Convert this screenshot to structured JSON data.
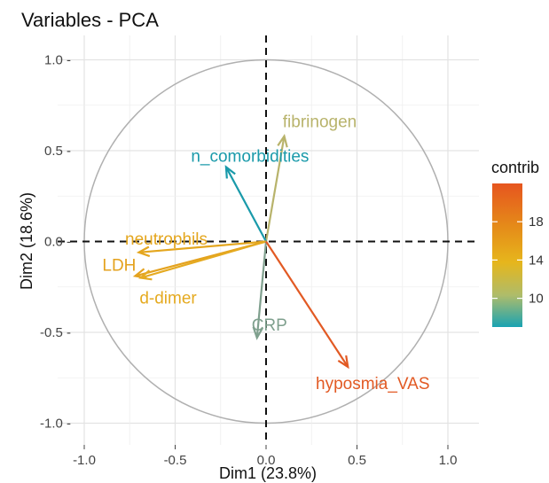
{
  "chart_data": {
    "type": "scatter",
    "subtype": "pca-variable-correlation-circle",
    "title": "Variables - PCA",
    "xlabel": "Dim1 (23.8%)",
    "ylabel": "Dim2 (18.6%)",
    "xlim": [
      -1.0,
      1.0
    ],
    "ylim": [
      -1.0,
      1.0
    ],
    "x_ticks": [
      "-1.0",
      "-0.5",
      "0.0",
      "0.5",
      "1.0"
    ],
    "y_ticks": [
      "1.0 -",
      "0.5 -",
      "0.0 -",
      "-0.5 -",
      "-1.0 -"
    ],
    "grid": true,
    "unit_circle": true,
    "variables": [
      {
        "name": "fibrinogen",
        "x": 0.1,
        "y": 0.58,
        "contrib": 10.5,
        "color": "#b8b36b"
      },
      {
        "name": "n_comorbidities",
        "x": -0.22,
        "y": 0.41,
        "contrib": 7.5,
        "color": "#1a9aaa"
      },
      {
        "name": "neutrophils",
        "x": -0.7,
        "y": -0.06,
        "contrib": 17.5,
        "color": "#e4a61e"
      },
      {
        "name": "LDH",
        "x": -0.72,
        "y": -0.19,
        "contrib": 18.0,
        "color": "#e4a21e"
      },
      {
        "name": "d-dimer",
        "x": -0.69,
        "y": -0.2,
        "contrib": 17.0,
        "color": "#e5aa20"
      },
      {
        "name": "CRP",
        "x": -0.05,
        "y": -0.53,
        "contrib": 9.0,
        "color": "#7fa08e"
      },
      {
        "name": "hyposmia_VAS",
        "x": 0.45,
        "y": -0.69,
        "contrib": 21.5,
        "color": "#e25a24"
      }
    ],
    "legend": {
      "title": "contrib",
      "placement": "right",
      "ticks": [
        "18",
        "14",
        "10"
      ],
      "gradient": [
        "#e6551f",
        "#e58b19",
        "#e6b61c",
        "#aebc6b",
        "#1aa3b2"
      ]
    }
  }
}
